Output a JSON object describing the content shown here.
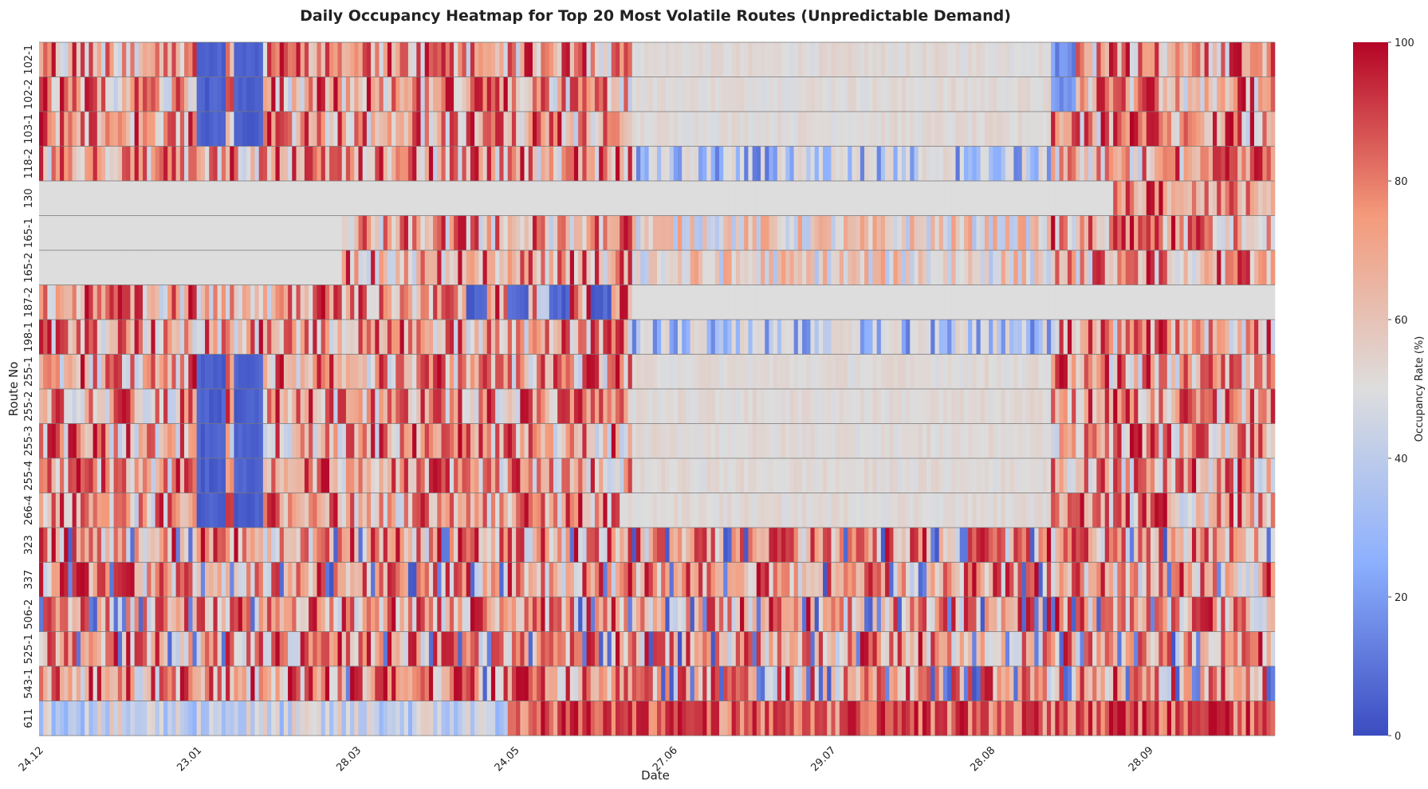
{
  "chart_data": {
    "type": "heatmap",
    "title": "Daily Occupancy Heatmap for Top 20 Most Volatile Routes (Unpredictable Demand)",
    "xlabel": "Date",
    "ylabel": "Route No",
    "rows": [
      "102-1",
      "102-2",
      "103-1",
      "118-2",
      "130",
      "165-1",
      "165-2",
      "187-2",
      "198-1",
      "255-1",
      "255-2",
      "255-3",
      "255-4",
      "266-4",
      "323",
      "337",
      "506-2",
      "525-1",
      "543-1",
      "611"
    ],
    "x_tick_labels": [
      "24.12",
      "23.01",
      "28.03",
      "24.05",
      "27.06",
      "29.07",
      "28.08",
      "28.09"
    ],
    "x_tick_fraction": [
      0.0,
      0.128,
      0.257,
      0.385,
      0.513,
      0.641,
      0.77,
      0.898
    ],
    "columns_count": 298,
    "colorbar": {
      "label": "Occupancy Rate (%)",
      "min": 0,
      "max": 100,
      "ticks": [
        0,
        20,
        40,
        60,
        80,
        100
      ],
      "colormap": "coolwarm"
    },
    "row_summaries": [
      {
        "route": "102-1",
        "pattern": "mostly 50-80 Dec-Jun, near 0 late Jan, ~50 Jun-Sep, near 10 early Sep, 80-100 late Sep-Oct"
      },
      {
        "route": "130",
        "pattern": "flat ~50 until late Sep, then 60-100"
      },
      {
        "route": "611",
        "pattern": "20-60 early, rising to 80-100 from May"
      }
    ]
  }
}
